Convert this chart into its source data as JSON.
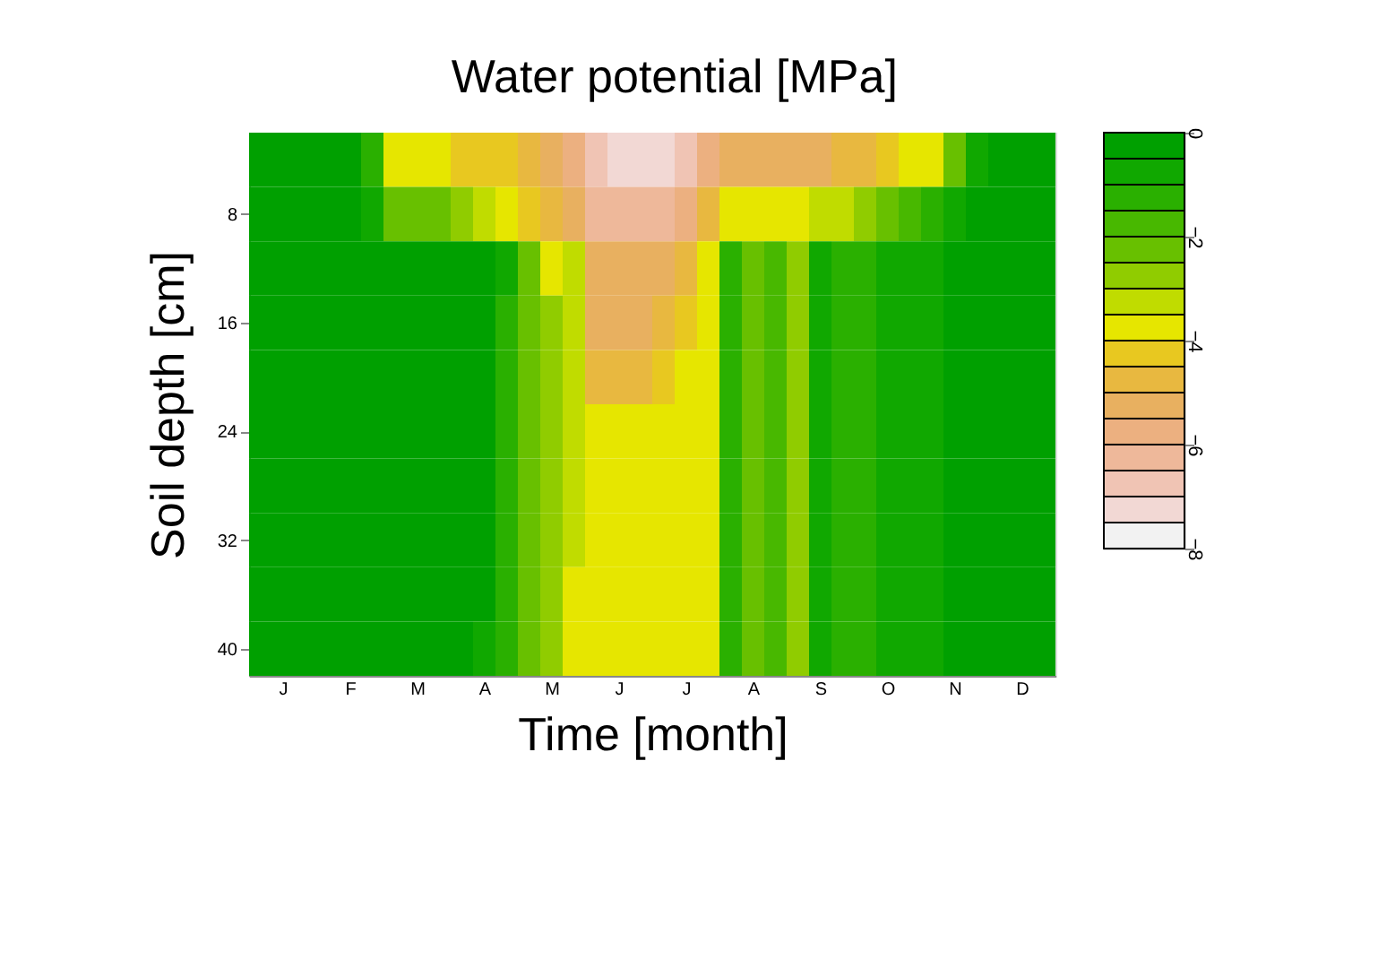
{
  "chart_data": {
    "type": "heatmap",
    "title": "Water potential [MPa]",
    "xlabel": "Time [month]",
    "ylabel": "Soil depth [cm]",
    "categories": [
      null,
      "J",
      null,
      null,
      "F",
      null,
      null,
      "M",
      null,
      null,
      "A",
      null,
      null,
      "M",
      null,
      null,
      "J",
      null,
      null,
      "J",
      null,
      null,
      "A",
      null,
      null,
      "S",
      null,
      null,
      "O",
      null,
      null,
      "N",
      null,
      null,
      "D",
      null
    ],
    "y_categories": [
      null,
      "8",
      null,
      "16",
      null,
      "24",
      null,
      "32",
      null,
      "40"
    ],
    "cells": [
      [
        -0.25,
        -0.25,
        -0.25,
        -0.25,
        -0.25,
        -1.25,
        -3.75,
        -3.75,
        -3.75,
        -4.25,
        -4.25,
        -4.25,
        -4.75,
        -5.25,
        -5.75,
        -6.75,
        -7.25,
        -7.25,
        -7.25,
        -6.75,
        -5.75,
        -5.25,
        -5.25,
        -5.25,
        -5.25,
        -5.25,
        -4.75,
        -4.75,
        -4.25,
        -3.75,
        -3.75,
        -2.25,
        -0.75,
        -0.25,
        -0.25,
        -0.25
      ],
      [
        -0.25,
        -0.25,
        -0.25,
        -0.25,
        -0.25,
        -0.75,
        -2.25,
        -2.25,
        -2.25,
        -2.75,
        -3.25,
        -3.75,
        -4.25,
        -4.75,
        -5.25,
        -6.25,
        -6.25,
        -6.25,
        -6.25,
        -5.75,
        -4.75,
        -3.75,
        -3.75,
        -3.75,
        -3.75,
        -3.25,
        -3.25,
        -2.75,
        -2.25,
        -1.75,
        -1.25,
        -0.75,
        -0.25,
        -0.25,
        -0.25,
        -0.25
      ],
      [
        -0.25,
        -0.25,
        -0.25,
        -0.25,
        -0.25,
        -0.25,
        -0.25,
        -0.25,
        -0.25,
        -0.25,
        -0.25,
        -0.75,
        -2.25,
        -3.75,
        -3.25,
        -5.25,
        -5.25,
        -5.25,
        -5.25,
        -4.75,
        -3.75,
        -1.25,
        -2.25,
        -1.75,
        -2.75,
        -0.75,
        -1.25,
        -1.25,
        -0.75,
        -0.75,
        -0.75,
        -0.25,
        -0.25,
        -0.25,
        -0.25,
        -0.25
      ],
      [
        -0.25,
        -0.25,
        -0.25,
        -0.25,
        -0.25,
        -0.25,
        -0.25,
        -0.25,
        -0.25,
        -0.25,
        -0.25,
        -1.25,
        -2.25,
        -2.75,
        -3.25,
        -5.25,
        -5.25,
        -5.25,
        -4.75,
        -4.25,
        -3.75,
        -1.25,
        -2.25,
        -1.75,
        -2.75,
        -0.75,
        -1.25,
        -1.25,
        -0.75,
        -0.75,
        -0.75,
        -0.25,
        -0.25,
        -0.25,
        -0.25,
        -0.25
      ],
      [
        -0.25,
        -0.25,
        -0.25,
        -0.25,
        -0.25,
        -0.25,
        -0.25,
        -0.25,
        -0.25,
        -0.25,
        -0.25,
        -1.25,
        -2.25,
        -2.75,
        -3.25,
        -4.75,
        -4.75,
        -4.75,
        -4.25,
        -3.75,
        -3.75,
        -1.25,
        -2.25,
        -1.75,
        -2.75,
        -0.75,
        -1.25,
        -1.25,
        -0.75,
        -0.75,
        -0.75,
        -0.25,
        -0.25,
        -0.25,
        -0.25,
        -0.25
      ],
      [
        -0.25,
        -0.25,
        -0.25,
        -0.25,
        -0.25,
        -0.25,
        -0.25,
        -0.25,
        -0.25,
        -0.25,
        -0.25,
        -1.25,
        -2.25,
        -2.75,
        -3.25,
        -3.75,
        -3.75,
        -3.75,
        -3.75,
        -3.75,
        -3.75,
        -1.25,
        -2.25,
        -1.75,
        -2.75,
        -0.75,
        -1.25,
        -1.25,
        -0.75,
        -0.75,
        -0.75,
        -0.25,
        -0.25,
        -0.25,
        -0.25,
        -0.25
      ],
      [
        -0.25,
        -0.25,
        -0.25,
        -0.25,
        -0.25,
        -0.25,
        -0.25,
        -0.25,
        -0.25,
        -0.25,
        -0.25,
        -1.25,
        -2.25,
        -2.75,
        -3.25,
        -3.75,
        -3.75,
        -3.75,
        -3.75,
        -3.75,
        -3.75,
        -1.25,
        -2.25,
        -1.75,
        -2.75,
        -0.75,
        -1.25,
        -1.25,
        -0.75,
        -0.75,
        -0.75,
        -0.25,
        -0.25,
        -0.25,
        -0.25,
        -0.25
      ],
      [
        -0.25,
        -0.25,
        -0.25,
        -0.25,
        -0.25,
        -0.25,
        -0.25,
        -0.25,
        -0.25,
        -0.25,
        -0.25,
        -1.25,
        -2.25,
        -2.75,
        -3.25,
        -3.75,
        -3.75,
        -3.75,
        -3.75,
        -3.75,
        -3.75,
        -1.25,
        -2.25,
        -1.75,
        -2.75,
        -0.75,
        -1.25,
        -1.25,
        -0.75,
        -0.75,
        -0.75,
        -0.25,
        -0.25,
        -0.25,
        -0.25,
        -0.25
      ],
      [
        -0.25,
        -0.25,
        -0.25,
        -0.25,
        -0.25,
        -0.25,
        -0.25,
        -0.25,
        -0.25,
        -0.25,
        -0.25,
        -1.25,
        -2.25,
        -2.75,
        -3.75,
        -3.75,
        -3.75,
        -3.75,
        -3.75,
        -3.75,
        -3.75,
        -1.25,
        -2.25,
        -1.75,
        -2.75,
        -0.75,
        -1.25,
        -1.25,
        -0.75,
        -0.75,
        -0.75,
        -0.25,
        -0.25,
        -0.25,
        -0.25,
        -0.25
      ],
      [
        -0.25,
        -0.25,
        -0.25,
        -0.25,
        -0.25,
        -0.25,
        -0.25,
        -0.25,
        -0.25,
        -0.25,
        -0.75,
        -1.25,
        -2.25,
        -2.75,
        -3.75,
        -3.75,
        -3.75,
        -3.75,
        -3.75,
        -3.75,
        -3.75,
        -1.25,
        -2.25,
        -1.75,
        -2.75,
        -0.75,
        -1.25,
        -1.25,
        -0.75,
        -0.75,
        -0.75,
        -0.25,
        -0.25,
        -0.25,
        -0.25,
        -0.25
      ]
    ],
    "clim": [
      -8,
      0
    ],
    "cticks": [
      0,
      -2,
      -4,
      -6,
      -8
    ],
    "colors": [
      "#f2f2f2",
      "#f2d8d4",
      "#f0c4b4",
      "#eeb89a",
      "#ecb080",
      "#e8b060",
      "#e8b840",
      "#e8c820",
      "#e6e600",
      "#c0dc00",
      "#90cc00",
      "#68c000",
      "#48b800",
      "#2ab000",
      "#10a800",
      "#00a000"
    ],
    "grid": false
  }
}
